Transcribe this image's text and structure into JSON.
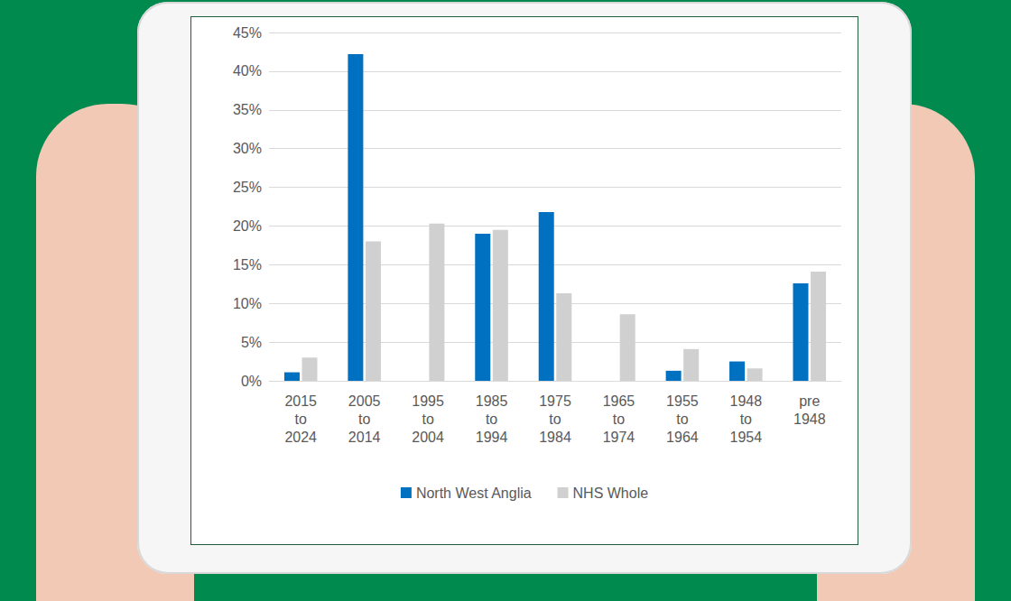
{
  "chart_data": {
    "type": "bar",
    "categories": [
      "2015 to 2024",
      "2005 to 2014",
      "1995 to 2004",
      "1985 to 1994",
      "1975 to 1984",
      "1965 to 1974",
      "1955 to 1964",
      "1948 to 1954",
      "pre 1948"
    ],
    "series": [
      {
        "name": "North West Anglia",
        "color": "#0070c0",
        "values": [
          1.1,
          42.2,
          0,
          19.0,
          21.8,
          0,
          1.3,
          2.5,
          12.6
        ]
      },
      {
        "name": "NHS Whole",
        "color": "#d0d0d0",
        "values": [
          3.0,
          18.0,
          20.3,
          19.5,
          11.3,
          8.6,
          4.1,
          1.6,
          14.1
        ]
      }
    ],
    "ylim": [
      0,
      45
    ],
    "yticks": [
      {
        "value": 0,
        "label": "0%"
      },
      {
        "value": 5,
        "label": "5%"
      },
      {
        "value": 10,
        "label": "10%"
      },
      {
        "value": 15,
        "label": "15%"
      },
      {
        "value": 20,
        "label": "20%"
      },
      {
        "value": 25,
        "label": "25%"
      },
      {
        "value": 30,
        "label": "30%"
      },
      {
        "value": 35,
        "label": "35%"
      },
      {
        "value": 40,
        "label": "40%"
      },
      {
        "value": 45,
        "label": "45%"
      }
    ],
    "grid": true,
    "legend": "bottom"
  }
}
